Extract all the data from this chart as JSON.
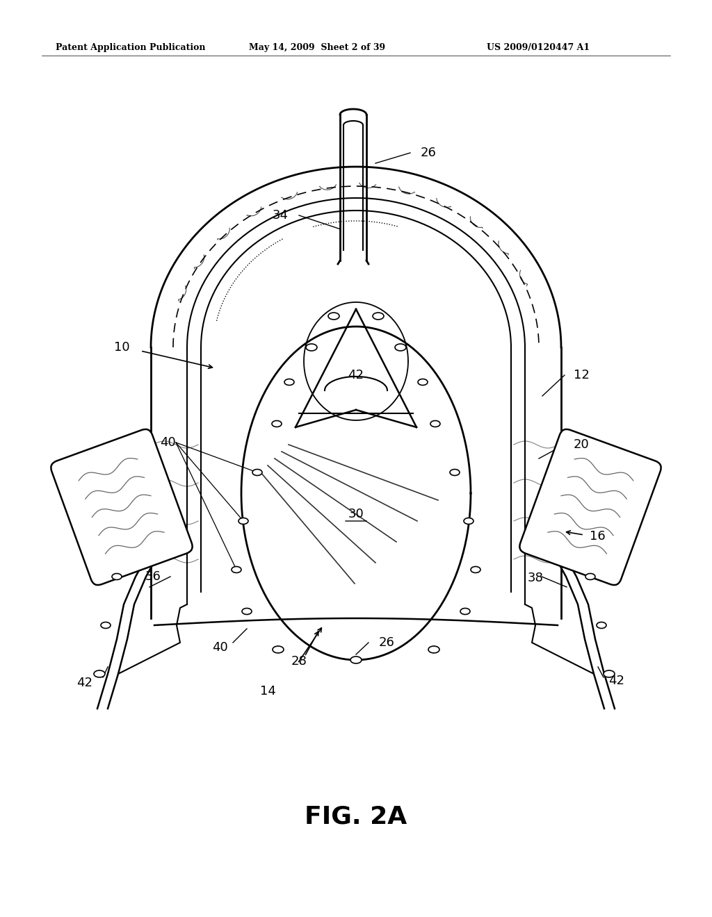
{
  "title": "FIG. 2A",
  "header_left": "Patent Application Publication",
  "header_mid": "May 14, 2009  Sheet 2 of 39",
  "header_right": "US 2009/0120447 A1",
  "bg_color": "#ffffff",
  "line_color": "#000000",
  "fig_width": 10.24,
  "fig_height": 13.2,
  "dpi": 100
}
